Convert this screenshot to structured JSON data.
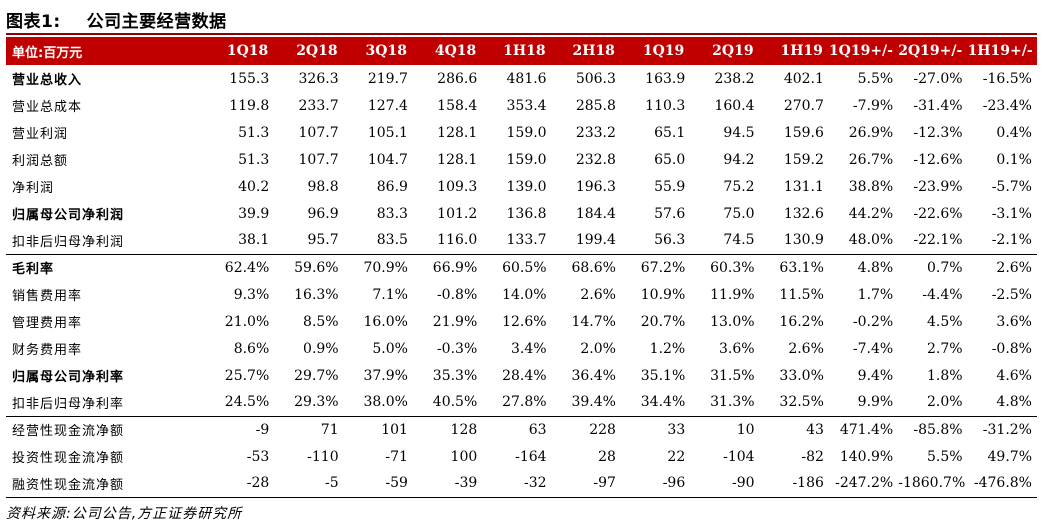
{
  "figure": {
    "number": "图表1:",
    "title": "公司主要经营数据"
  },
  "table": {
    "header": {
      "unit": "单位:百万元",
      "columns": [
        "1Q18",
        "2Q18",
        "3Q18",
        "4Q18",
        "1H18",
        "2H18",
        "1Q19",
        "2Q19",
        "1H19",
        "1Q19+/-",
        "2Q19+/-",
        "1H19+/-"
      ]
    },
    "rows": [
      {
        "label": "营业总收入",
        "bold": true,
        "values": [
          "155.3",
          "326.3",
          "219.7",
          "286.6",
          "481.6",
          "506.3",
          "163.9",
          "238.2",
          "402.1",
          "5.5%",
          "-27.0%",
          "-16.5%"
        ]
      },
      {
        "label": "营业总成本",
        "bold": false,
        "values": [
          "119.8",
          "233.7",
          "127.4",
          "158.4",
          "353.4",
          "285.8",
          "110.3",
          "160.4",
          "270.7",
          "-7.9%",
          "-31.4%",
          "-23.4%"
        ]
      },
      {
        "label": "营业利润",
        "bold": false,
        "values": [
          "51.3",
          "107.7",
          "105.1",
          "128.1",
          "159.0",
          "233.2",
          "65.1",
          "94.5",
          "159.6",
          "26.9%",
          "-12.3%",
          "0.4%"
        ]
      },
      {
        "label": "利润总额",
        "bold": false,
        "values": [
          "51.3",
          "107.7",
          "104.7",
          "128.1",
          "159.0",
          "232.8",
          "65.0",
          "94.2",
          "159.2",
          "26.7%",
          "-12.6%",
          "0.1%"
        ]
      },
      {
        "label": "净利润",
        "bold": false,
        "values": [
          "40.2",
          "98.8",
          "86.9",
          "109.3",
          "139.0",
          "196.3",
          "55.9",
          "75.2",
          "131.1",
          "38.8%",
          "-23.9%",
          "-5.7%"
        ]
      },
      {
        "label": "归属母公司净利润",
        "bold": true,
        "values": [
          "39.9",
          "96.9",
          "83.3",
          "101.2",
          "136.8",
          "184.4",
          "57.6",
          "75.0",
          "132.6",
          "44.2%",
          "-22.6%",
          "-3.1%"
        ]
      },
      {
        "label": "扣非后归母净利润",
        "bold": false,
        "values": [
          "38.1",
          "95.7",
          "83.5",
          "116.0",
          "133.7",
          "199.4",
          "56.3",
          "74.5",
          "130.9",
          "48.0%",
          "-22.1%",
          "-2.1%"
        ]
      },
      {
        "label": "毛利率",
        "bold": true,
        "values": [
          "62.4%",
          "59.6%",
          "70.9%",
          "66.9%",
          "60.5%",
          "68.6%",
          "67.2%",
          "60.3%",
          "63.1%",
          "4.8%",
          "0.7%",
          "2.6%"
        ]
      },
      {
        "label": "销售费用率",
        "bold": false,
        "values": [
          "9.3%",
          "16.3%",
          "7.1%",
          "-0.8%",
          "14.0%",
          "2.6%",
          "10.9%",
          "11.9%",
          "11.5%",
          "1.7%",
          "-4.4%",
          "-2.5%"
        ]
      },
      {
        "label": "管理费用率",
        "bold": false,
        "values": [
          "21.0%",
          "8.5%",
          "16.0%",
          "21.9%",
          "12.6%",
          "14.7%",
          "20.7%",
          "13.0%",
          "16.2%",
          "-0.2%",
          "4.5%",
          "3.6%"
        ]
      },
      {
        "label": "财务费用率",
        "bold": false,
        "values": [
          "8.6%",
          "0.9%",
          "5.0%",
          "-0.3%",
          "3.4%",
          "2.0%",
          "1.2%",
          "3.6%",
          "2.6%",
          "-7.4%",
          "2.7%",
          "-0.8%"
        ]
      },
      {
        "label": "归属母公司净利率",
        "bold": true,
        "values": [
          "25.7%",
          "29.7%",
          "37.9%",
          "35.3%",
          "28.4%",
          "36.4%",
          "35.1%",
          "31.5%",
          "33.0%",
          "9.4%",
          "1.8%",
          "4.6%"
        ]
      },
      {
        "label": "扣非后归母净利率",
        "bold": false,
        "values": [
          "24.5%",
          "29.3%",
          "38.0%",
          "40.5%",
          "27.8%",
          "39.4%",
          "34.4%",
          "31.3%",
          "32.5%",
          "9.9%",
          "2.0%",
          "4.8%"
        ]
      },
      {
        "label": "经营性现金流净额",
        "bold": false,
        "values": [
          "-9",
          "71",
          "101",
          "128",
          "63",
          "228",
          "33",
          "10",
          "43",
          "471.4%",
          "-85.8%",
          "-31.2%"
        ]
      },
      {
        "label": "投资性现金流净额",
        "bold": false,
        "values": [
          "-53",
          "-110",
          "-71",
          "100",
          "-164",
          "28",
          "22",
          "-104",
          "-82",
          "140.9%",
          "5.5%",
          "49.7%"
        ]
      },
      {
        "label": "融资性现金流净额",
        "bold": false,
        "values": [
          "-28",
          "-5",
          "-59",
          "-39",
          "-32",
          "-97",
          "-96",
          "-90",
          "-186",
          "-247.2%",
          "-1860.7%",
          "-476.8%"
        ]
      }
    ]
  },
  "source": "资料来源:公司公告,方正证券研究所",
  "colors": {
    "header_bg": "#c00000",
    "header_text": "#ffffff",
    "title_rule": "#8b0000"
  }
}
